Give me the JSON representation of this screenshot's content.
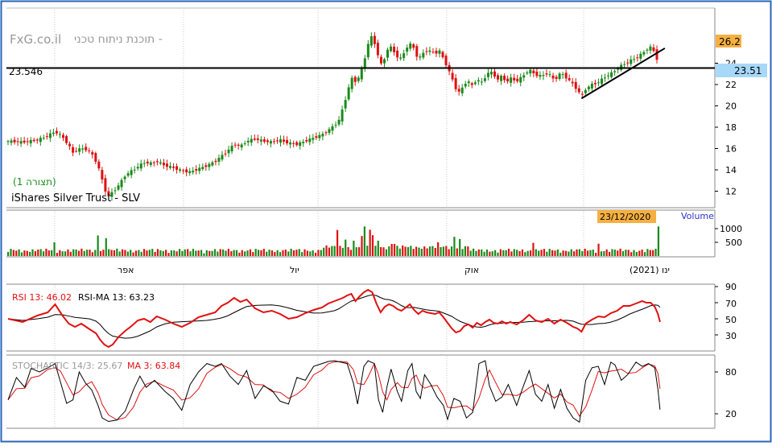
{
  "header": {
    "site": "FxG.co.il",
    "tagline": "תוכנת ניתוח טכני -",
    "view_label": "(תצורה 1)",
    "instrument": "iShares Silver Trust - SLV"
  },
  "colors": {
    "border": "#2a66b8",
    "up": "#1a8a1a",
    "down": "#e01010",
    "price_tag": "#f5b041",
    "last_tag": "#a8d8f8",
    "volume_label": "#2a32c8",
    "rsi": "#e01010",
    "stoch_ma": "#e01010",
    "grid": "#c9c9c9"
  },
  "price_panel": {
    "hline_label": "23.546",
    "tag_high": "26.2",
    "tag_last": "23.51",
    "y_ticks": [
      "24",
      "22",
      "20",
      "18",
      "16",
      "14",
      "12"
    ]
  },
  "volume_panel": {
    "title": "Volume",
    "date_tag": "23/12/2020",
    "y_ticks": [
      "1000",
      "500"
    ],
    "x_labels": [
      "אפר",
      "יול",
      "אוק",
      "ינו (2021)"
    ]
  },
  "rsi_panel": {
    "rsi_label": "RSI 13: 46.02",
    "ma_label": "RSI-MA 13: 63.23",
    "y_ticks": [
      "90",
      "70",
      "50",
      "30"
    ]
  },
  "stoch_panel": {
    "stoch_label": "STOCHASTIC 14/3: 25.67",
    "ma_label": "MA 3: 63.84",
    "y_ticks": [
      "80",
      "20"
    ]
  },
  "chart_data": [
    {
      "type": "candlestick",
      "title": "iShares Silver Trust - SLV",
      "ylim": [
        10.5,
        27
      ],
      "y_ticks": [
        24,
        22,
        20,
        18,
        16,
        14,
        12
      ],
      "horizontal_line": 23.546,
      "last": 23.51,
      "high_marker": 26.2,
      "x_month_labels": [
        "אפר",
        "יול",
        "אוק",
        "ינו (2021)"
      ],
      "close_path": [
        [
          0,
          16.7
        ],
        [
          14,
          16.6
        ],
        [
          28,
          16.8
        ],
        [
          38,
          17.2
        ],
        [
          45,
          17.6
        ],
        [
          52,
          17.1
        ],
        [
          58,
          16.3
        ],
        [
          62,
          15.6
        ],
        [
          66,
          15.9
        ],
        [
          70,
          16.0
        ],
        [
          76,
          15.9
        ],
        [
          80,
          15.5
        ],
        [
          84,
          14.8
        ],
        [
          88,
          13.8
        ],
        [
          92,
          12.2
        ],
        [
          96,
          11.6
        ],
        [
          100,
          11.9
        ],
        [
          106,
          12.6
        ],
        [
          112,
          13.5
        ],
        [
          118,
          13.9
        ],
        [
          124,
          14.3
        ],
        [
          130,
          14.7
        ],
        [
          136,
          14.6
        ],
        [
          142,
          14.8
        ],
        [
          150,
          14.4
        ],
        [
          158,
          14.2
        ],
        [
          166,
          13.9
        ],
        [
          174,
          13.8
        ],
        [
          182,
          14.1
        ],
        [
          190,
          14.4
        ],
        [
          198,
          14.8
        ],
        [
          204,
          15.3
        ],
        [
          210,
          15.8
        ],
        [
          216,
          16.4
        ],
        [
          222,
          16.2
        ],
        [
          228,
          16.7
        ],
        [
          236,
          16.9
        ],
        [
          244,
          16.7
        ],
        [
          252,
          16.6
        ],
        [
          260,
          16.8
        ],
        [
          268,
          16.5
        ],
        [
          276,
          16.4
        ],
        [
          284,
          16.7
        ],
        [
          292,
          17.0
        ],
        [
          300,
          17.3
        ],
        [
          306,
          17.7
        ],
        [
          312,
          18.2
        ],
        [
          316,
          18.6
        ],
        [
          320,
          19.8
        ],
        [
          324,
          21.2
        ],
        [
          328,
          22.6
        ],
        [
          332,
          22.3
        ],
        [
          336,
          22.8
        ],
        [
          340,
          24.1
        ],
        [
          344,
          25.8
        ],
        [
          348,
          26.6
        ],
        [
          352,
          25.3
        ],
        [
          356,
          23.8
        ],
        [
          360,
          24.5
        ],
        [
          364,
          25.7
        ],
        [
          368,
          25.2
        ],
        [
          372,
          24.6
        ],
        [
          376,
          24.4
        ],
        [
          380,
          25.4
        ],
        [
          384,
          25.8
        ],
        [
          388,
          25.4
        ],
        [
          392,
          24.3
        ],
        [
          396,
          24.9
        ],
        [
          400,
          25.2
        ],
        [
          404,
          25.1
        ],
        [
          408,
          24.9
        ],
        [
          412,
          25.2
        ],
        [
          416,
          24.4
        ],
        [
          420,
          23.6
        ],
        [
          424,
          22.6
        ],
        [
          428,
          21.6
        ],
        [
          432,
          21.2
        ],
        [
          436,
          22.1
        ],
        [
          440,
          22.3
        ],
        [
          444,
          21.8
        ],
        [
          448,
          22.6
        ],
        [
          452,
          22.1
        ],
        [
          456,
          22.7
        ],
        [
          460,
          23.3
        ],
        [
          464,
          22.9
        ],
        [
          468,
          22.5
        ],
        [
          472,
          22.8
        ],
        [
          476,
          22.2
        ],
        [
          480,
          22.6
        ],
        [
          486,
          22.3
        ],
        [
          492,
          22.8
        ],
        [
          498,
          23.4
        ],
        [
          504,
          22.9
        ],
        [
          510,
          22.8
        ],
        [
          516,
          23.1
        ],
        [
          522,
          22.4
        ],
        [
          528,
          23.1
        ],
        [
          534,
          22.6
        ],
        [
          540,
          22.0
        ],
        [
          544,
          21.5
        ],
        [
          548,
          20.9
        ],
        [
          552,
          21.6
        ],
        [
          558,
          22.0
        ],
        [
          564,
          22.2
        ],
        [
          570,
          22.7
        ],
        [
          576,
          23.0
        ],
        [
          582,
          23.5
        ],
        [
          588,
          23.9
        ],
        [
          594,
          24.2
        ],
        [
          600,
          24.5
        ],
        [
          606,
          24.9
        ],
        [
          610,
          25.3
        ],
        [
          614,
          25.5
        ],
        [
          618,
          25.0
        ],
        [
          621,
          24.1
        ],
        [
          623,
          23.5
        ]
      ],
      "trendline": [
        [
          548,
          20.7
        ],
        [
          623,
          25.4
        ]
      ]
    },
    {
      "type": "bar",
      "title": "Volume",
      "y_ticks": [
        1000,
        500
      ],
      "date_marker": "23/12/2020",
      "spikes": [
        [
          45,
          500
        ],
        [
          86,
          750
        ],
        [
          93,
          650
        ],
        [
          314,
          950
        ],
        [
          322,
          600
        ],
        [
          330,
          560
        ],
        [
          337,
          730
        ],
        [
          341,
          1080
        ],
        [
          345,
          960
        ],
        [
          349,
          760
        ],
        [
          354,
          560
        ],
        [
          368,
          440
        ],
        [
          410,
          500
        ],
        [
          426,
          700
        ],
        [
          432,
          620
        ],
        [
          502,
          480
        ],
        [
          565,
          450
        ],
        [
          622,
          1080
        ]
      ]
    },
    {
      "type": "line",
      "name": "RSI 13",
      "current": 46.02,
      "ma_name": "RSI-MA 13",
      "ma_current": 63.23,
      "y_ticks": [
        90,
        70,
        50,
        30
      ],
      "rsi": [
        [
          0,
          50
        ],
        [
          14,
          46
        ],
        [
          28,
          54
        ],
        [
          38,
          58
        ],
        [
          45,
          68
        ],
        [
          52,
          54
        ],
        [
          58,
          44
        ],
        [
          64,
          40
        ],
        [
          70,
          44
        ],
        [
          78,
          37
        ],
        [
          84,
          32
        ],
        [
          88,
          24
        ],
        [
          92,
          18
        ],
        [
          96,
          15
        ],
        [
          100,
          18
        ],
        [
          106,
          28
        ],
        [
          112,
          35
        ],
        [
          118,
          41
        ],
        [
          124,
          48
        ],
        [
          130,
          50
        ],
        [
          136,
          46
        ],
        [
          142,
          53
        ],
        [
          150,
          49
        ],
        [
          158,
          44
        ],
        [
          166,
          40
        ],
        [
          174,
          45
        ],
        [
          182,
          52
        ],
        [
          190,
          55
        ],
        [
          198,
          58
        ],
        [
          204,
          66
        ],
        [
          210,
          70
        ],
        [
          216,
          76
        ],
        [
          222,
          71
        ],
        [
          228,
          74
        ],
        [
          236,
          63
        ],
        [
          244,
          58
        ],
        [
          252,
          60
        ],
        [
          260,
          56
        ],
        [
          268,
          50
        ],
        [
          276,
          52
        ],
        [
          284,
          57
        ],
        [
          292,
          61
        ],
        [
          300,
          64
        ],
        [
          306,
          69
        ],
        [
          312,
          72
        ],
        [
          316,
          74
        ],
        [
          320,
          76
        ],
        [
          324,
          79
        ],
        [
          328,
          81
        ],
        [
          332,
          72
        ],
        [
          336,
          78
        ],
        [
          340,
          83
        ],
        [
          344,
          86
        ],
        [
          348,
          83
        ],
        [
          352,
          69
        ],
        [
          356,
          58
        ],
        [
          360,
          65
        ],
        [
          364,
          68
        ],
        [
          368,
          66
        ],
        [
          372,
          62
        ],
        [
          376,
          60
        ],
        [
          380,
          64
        ],
        [
          384,
          68
        ],
        [
          388,
          61
        ],
        [
          392,
          56
        ],
        [
          396,
          60
        ],
        [
          400,
          58
        ],
        [
          404,
          57
        ],
        [
          408,
          56
        ],
        [
          412,
          58
        ],
        [
          416,
          52
        ],
        [
          420,
          45
        ],
        [
          424,
          38
        ],
        [
          428,
          33
        ],
        [
          432,
          35
        ],
        [
          436,
          41
        ],
        [
          440,
          43
        ],
        [
          444,
          39
        ],
        [
          448,
          45
        ],
        [
          452,
          42
        ],
        [
          456,
          46
        ],
        [
          460,
          49
        ],
        [
          464,
          45
        ],
        [
          468,
          44
        ],
        [
          472,
          47
        ],
        [
          476,
          44
        ],
        [
          480,
          46
        ],
        [
          486,
          43
        ],
        [
          492,
          48
        ],
        [
          498,
          55
        ],
        [
          504,
          48
        ],
        [
          510,
          46
        ],
        [
          516,
          50
        ],
        [
          522,
          44
        ],
        [
          528,
          49
        ],
        [
          534,
          45
        ],
        [
          540,
          40
        ],
        [
          544,
          38
        ],
        [
          548,
          34
        ],
        [
          552,
          44
        ],
        [
          558,
          49
        ],
        [
          564,
          53
        ],
        [
          570,
          52
        ],
        [
          576,
          57
        ],
        [
          582,
          60
        ],
        [
          588,
          66
        ],
        [
          594,
          66
        ],
        [
          600,
          69
        ],
        [
          606,
          72
        ],
        [
          610,
          70
        ],
        [
          614,
          70
        ],
        [
          618,
          65
        ],
        [
          621,
          56
        ],
        [
          623,
          46
        ]
      ]
    },
    {
      "type": "line",
      "name": "STOCHASTIC 14/3",
      "current": 25.67,
      "ma_name": "MA 3",
      "ma_current": 63.84,
      "y_ticks": [
        80,
        20
      ],
      "stoch": [
        [
          0,
          40
        ],
        [
          8,
          72
        ],
        [
          16,
          58
        ],
        [
          22,
          85
        ],
        [
          30,
          80
        ],
        [
          38,
          86
        ],
        [
          45,
          92
        ],
        [
          50,
          66
        ],
        [
          56,
          35
        ],
        [
          62,
          40
        ],
        [
          68,
          80
        ],
        [
          74,
          64
        ],
        [
          80,
          54
        ],
        [
          86,
          32
        ],
        [
          90,
          14
        ],
        [
          96,
          9
        ],
        [
          104,
          11
        ],
        [
          112,
          24
        ],
        [
          120,
          55
        ],
        [
          126,
          74
        ],
        [
          132,
          58
        ],
        [
          140,
          68
        ],
        [
          150,
          52
        ],
        [
          158,
          42
        ],
        [
          166,
          25
        ],
        [
          174,
          62
        ],
        [
          182,
          80
        ],
        [
          190,
          92
        ],
        [
          198,
          88
        ],
        [
          204,
          92
        ],
        [
          212,
          74
        ],
        [
          220,
          62
        ],
        [
          228,
          82
        ],
        [
          236,
          42
        ],
        [
          244,
          60
        ],
        [
          252,
          54
        ],
        [
          260,
          38
        ],
        [
          268,
          34
        ],
        [
          276,
          72
        ],
        [
          284,
          68
        ],
        [
          292,
          88
        ],
        [
          300,
          92
        ],
        [
          306,
          95
        ],
        [
          312,
          96
        ],
        [
          318,
          94
        ],
        [
          324,
          92
        ],
        [
          330,
          64
        ],
        [
          334,
          34
        ],
        [
          340,
          88
        ],
        [
          344,
          96
        ],
        [
          350,
          92
        ],
        [
          354,
          40
        ],
        [
          358,
          22
        ],
        [
          362,
          58
        ],
        [
          366,
          84
        ],
        [
          372,
          52
        ],
        [
          376,
          38
        ],
        [
          382,
          82
        ],
        [
          386,
          92
        ],
        [
          390,
          52
        ],
        [
          394,
          42
        ],
        [
          398,
          76
        ],
        [
          404,
          62
        ],
        [
          410,
          44
        ],
        [
          416,
          32
        ],
        [
          420,
          12
        ],
        [
          426,
          42
        ],
        [
          432,
          38
        ],
        [
          438,
          14
        ],
        [
          444,
          22
        ],
        [
          450,
          92
        ],
        [
          456,
          96
        ],
        [
          460,
          60
        ],
        [
          466,
          38
        ],
        [
          472,
          44
        ],
        [
          478,
          62
        ],
        [
          486,
          32
        ],
        [
          492,
          58
        ],
        [
          498,
          82
        ],
        [
          504,
          48
        ],
        [
          510,
          38
        ],
        [
          516,
          62
        ],
        [
          522,
          28
        ],
        [
          528,
          55
        ],
        [
          534,
          28
        ],
        [
          540,
          14
        ],
        [
          546,
          8
        ],
        [
          552,
          68
        ],
        [
          558,
          86
        ],
        [
          564,
          88
        ],
        [
          570,
          62
        ],
        [
          576,
          94
        ],
        [
          580,
          90
        ],
        [
          586,
          68
        ],
        [
          592,
          76
        ],
        [
          600,
          94
        ],
        [
          606,
          88
        ],
        [
          612,
          92
        ],
        [
          618,
          86
        ],
        [
          621,
          55
        ],
        [
          623,
          26
        ]
      ]
    }
  ]
}
